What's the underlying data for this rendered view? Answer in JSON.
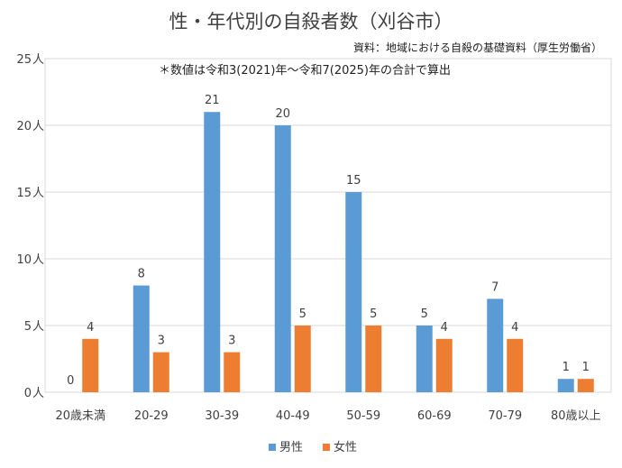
{
  "chart_data": {
    "type": "bar",
    "title": "性・年代別の自殺者数（刈谷市）",
    "source": "資料：地域における自殺の基礎資料（厚生労働省）",
    "note": "＊数値は令和3(2021)年～令和7(2025)年の合計で算出",
    "categories": [
      "20歳未満",
      "20-29",
      "30-39",
      "40-49",
      "50-59",
      "60-69",
      "70-79",
      "80歳以上"
    ],
    "series": [
      {
        "name": "男性",
        "color": "#5B9BD5",
        "values": [
          0,
          8,
          21,
          20,
          15,
          5,
          7,
          1
        ]
      },
      {
        "name": "女性",
        "color": "#ED7D31",
        "values": [
          4,
          3,
          3,
          5,
          5,
          4,
          4,
          1
        ]
      }
    ],
    "ylim": [
      0,
      25
    ],
    "yticks": [
      0,
      5,
      10,
      15,
      20,
      25
    ],
    "ytick_suffix": "人",
    "grid": true,
    "legend_position": "bottom"
  }
}
